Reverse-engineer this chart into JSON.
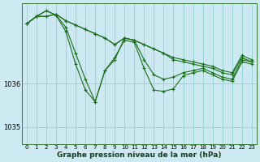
{
  "xlabel": "Graphe pression niveau de la mer (hPa)",
  "background_color": "#cce8f0",
  "grid_color": "#88cccc",
  "line_color": "#1a6e1a",
  "ylim": [
    1034.6,
    1037.85
  ],
  "yticks": [
    1035,
    1036
  ],
  "series": [
    [
      1037.38,
      1037.55,
      1037.55,
      1037.6,
      1037.45,
      1037.35,
      1037.25,
      1037.15,
      1037.05,
      1036.9,
      1037.05,
      1037.0,
      1036.9,
      1036.8,
      1036.7,
      1036.6,
      1036.55,
      1036.5,
      1036.45,
      1036.4,
      1036.3,
      1036.25,
      1036.65,
      1036.55
    ],
    [
      1037.38,
      1037.55,
      1037.55,
      1037.6,
      1037.45,
      1037.35,
      1037.25,
      1037.15,
      1037.05,
      1036.9,
      1037.05,
      1037.0,
      1036.9,
      1036.8,
      1036.7,
      1036.55,
      1036.5,
      1036.45,
      1036.4,
      1036.35,
      1036.25,
      1036.2,
      1036.6,
      1036.5
    ],
    [
      1037.38,
      1037.55,
      1037.68,
      1037.58,
      1037.3,
      1036.7,
      1036.1,
      1035.58,
      1036.3,
      1036.55,
      1037.05,
      1037.0,
      1036.55,
      1036.2,
      1036.1,
      1036.15,
      1036.25,
      1036.3,
      1036.35,
      1036.25,
      1036.15,
      1036.1,
      1036.55,
      1036.5
    ],
    [
      1037.38,
      1037.55,
      1037.68,
      1037.58,
      1037.2,
      1036.45,
      1035.85,
      1035.58,
      1036.3,
      1036.6,
      1037.0,
      1036.95,
      1036.35,
      1035.85,
      1035.82,
      1035.88,
      1036.18,
      1036.25,
      1036.3,
      1036.2,
      1036.1,
      1036.05,
      1036.5,
      1036.45
    ]
  ]
}
